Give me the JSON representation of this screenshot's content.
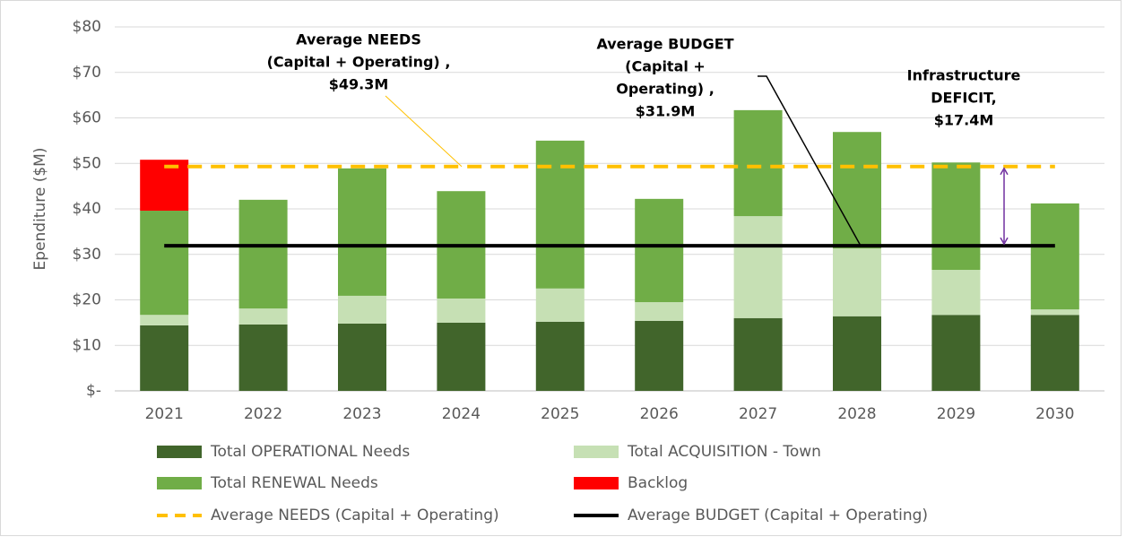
{
  "chart_data": {
    "type": "bar",
    "stacked": true,
    "y_label": "Ependiture ($M)",
    "categories": [
      "2021",
      "2022",
      "2023",
      "2024",
      "2025",
      "2026",
      "2027",
      "2028",
      "2029",
      "2030"
    ],
    "series": [
      {
        "name": "Total OPERATIONAL Needs",
        "color": "#41652b",
        "values": [
          14.4,
          14.6,
          14.8,
          15.0,
          15.2,
          15.4,
          16.0,
          16.4,
          16.7,
          16.7
        ]
      },
      {
        "name": "Total ACQUISITION - Town",
        "color": "#c6e0b4",
        "values": [
          2.3,
          3.5,
          6.1,
          5.3,
          7.3,
          4.1,
          22.4,
          14.9,
          9.9,
          1.2
        ]
      },
      {
        "name": "Total RENEWAL Needs",
        "color": "#70ad47",
        "values": [
          22.9,
          23.9,
          28.0,
          23.6,
          32.5,
          22.7,
          23.3,
          25.6,
          23.6,
          23.3
        ]
      },
      {
        "name": "Backlog",
        "color": "#ff0000",
        "values": [
          11.2,
          0,
          0,
          0,
          0,
          0,
          0,
          0,
          0,
          0
        ]
      }
    ],
    "lines": [
      {
        "name": "Average NEEDS (Capital + Operating)",
        "color": "#ffc000",
        "dashed": true,
        "value": 49.3
      },
      {
        "name": "Average BUDGET (Capital + Operating)",
        "color": "#000000",
        "dashed": false,
        "value": 31.9
      }
    ],
    "annotations": [
      {
        "lines": [
          "Average NEEDS",
          "(Capital + Operating) ,",
          "$49.3M"
        ]
      },
      {
        "lines": [
          "Average BUDGET",
          "(Capital +",
          "Operating) ,",
          "$31.9M"
        ]
      },
      {
        "lines": [
          "Infrastructure",
          "DEFICIT,",
          "$17.4M"
        ]
      }
    ],
    "ylim": [
      0,
      80
    ],
    "yticks": [
      {
        "value": 0,
        "label": "$-"
      },
      {
        "value": 10,
        "label": "$10"
      },
      {
        "value": 20,
        "label": "$20"
      },
      {
        "value": 30,
        "label": "$30"
      },
      {
        "value": 40,
        "label": "$40"
      },
      {
        "value": 50,
        "label": "$50"
      },
      {
        "value": 60,
        "label": "$60"
      },
      {
        "value": 70,
        "label": "$70"
      },
      {
        "value": 80,
        "label": "$80"
      }
    ],
    "grid": true,
    "legend": "bottom"
  }
}
